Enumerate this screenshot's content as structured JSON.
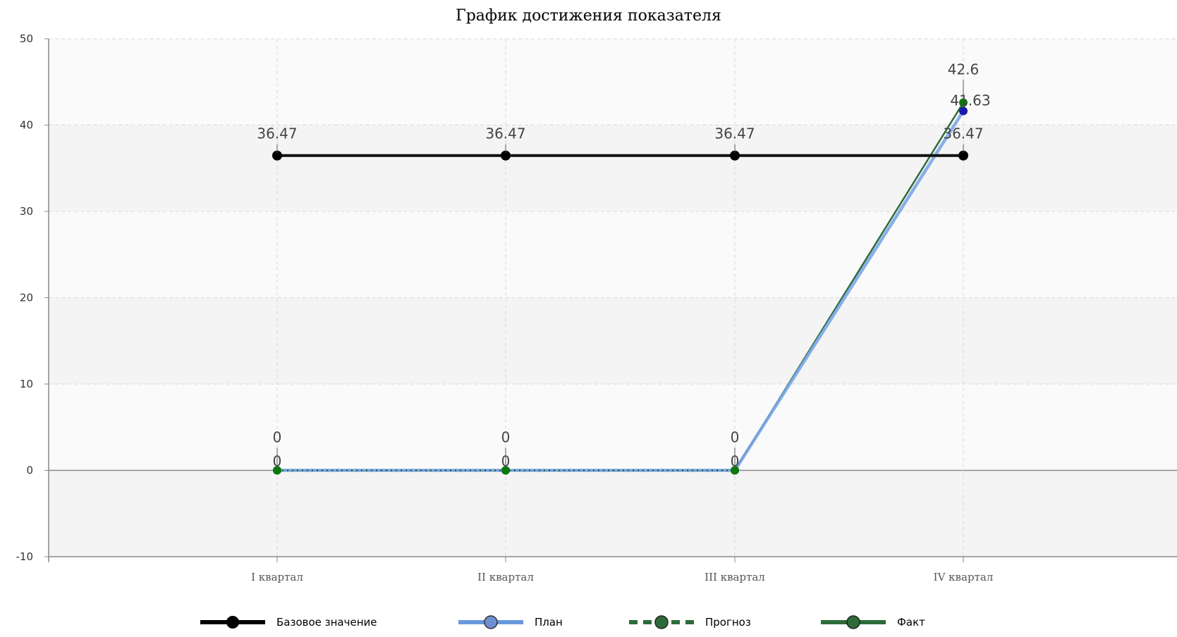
{
  "chart_data": {
    "type": "line",
    "title": "График достижения показателя",
    "xlabel": "",
    "ylabel": "",
    "categories": [
      "I квартал",
      "II квартал",
      "III квартал",
      "IV квартал"
    ],
    "ylim": [
      -10,
      50
    ],
    "y_ticks": [
      50,
      40,
      30,
      20,
      10,
      0,
      -10
    ],
    "grid": true,
    "legend_position": "bottom",
    "series": [
      {
        "name": "Базовое значение",
        "values": [
          36.47,
          36.47,
          36.47,
          36.47
        ],
        "color": "#000000",
        "dashed": false,
        "labels": [
          "36.47",
          "36.47",
          "36.47",
          "36.47"
        ]
      },
      {
        "name": "План",
        "values": [
          0,
          0,
          0,
          41.63
        ],
        "color": "#7aa6e8",
        "dashed": false,
        "labels": [
          "0",
          "0",
          "0",
          "41.63"
        ]
      },
      {
        "name": "Прогноз",
        "values": [
          0,
          0,
          0,
          null
        ],
        "color": "#2e6b3a",
        "dashed": true,
        "labels": [
          "0",
          "0",
          "0",
          ""
        ]
      },
      {
        "name": "Факт",
        "values": [
          0,
          0,
          0,
          42.6
        ],
        "color": "#2e6b3a",
        "dashed": false,
        "labels": [
          "0",
          "0",
          "0",
          "42.6"
        ]
      }
    ]
  },
  "colors": {
    "plot_band_dark": "#f4f4f4",
    "plot_band_light": "#fafafa",
    "grid": "#d8d8d8",
    "axis": "#888888",
    "plan_marker": "#1a1aa8",
    "fact_marker": "#0a7a0a"
  }
}
